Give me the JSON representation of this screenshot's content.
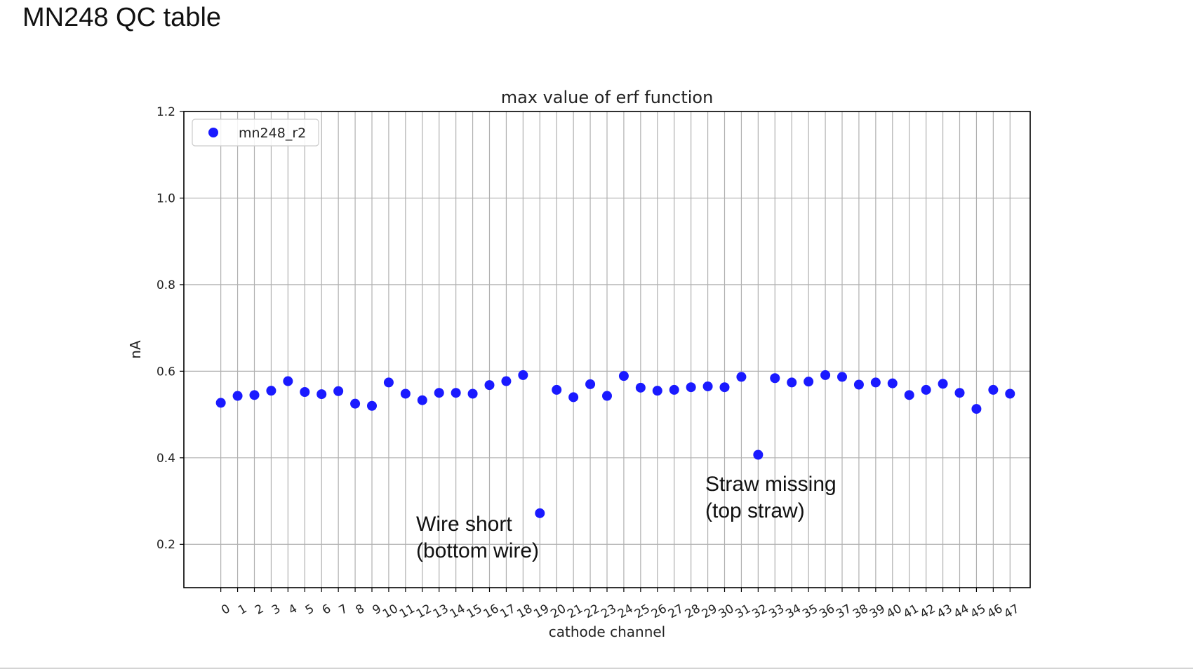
{
  "slide": {
    "title": "MN248 QC table"
  },
  "chart_data": {
    "type": "scatter",
    "title": "max value of erf function",
    "xlabel": "cathode channel",
    "ylabel": "nA",
    "xlim": [
      -2.2,
      48.2
    ],
    "ylim": [
      0.1,
      1.2
    ],
    "x_ticks": [
      0,
      1,
      2,
      3,
      4,
      5,
      6,
      7,
      8,
      9,
      10,
      11,
      12,
      13,
      14,
      15,
      16,
      17,
      18,
      19,
      20,
      21,
      22,
      23,
      24,
      25,
      26,
      27,
      28,
      29,
      30,
      31,
      32,
      33,
      34,
      35,
      36,
      37,
      38,
      39,
      40,
      41,
      42,
      43,
      44,
      45,
      46,
      47
    ],
    "y_ticks": [
      0.2,
      0.4,
      0.6,
      0.8,
      1.0,
      1.2
    ],
    "y_tick_labels": [
      "0.2",
      "0.4",
      "0.6",
      "0.8",
      "1.0",
      "1.2"
    ],
    "grid": true,
    "legend_position": "top-left",
    "series": [
      {
        "name": "mn248_r2",
        "color": "#1a1aff",
        "x": [
          0,
          1,
          2,
          3,
          4,
          5,
          6,
          7,
          8,
          9,
          10,
          11,
          12,
          13,
          14,
          15,
          16,
          17,
          18,
          19,
          20,
          21,
          22,
          23,
          24,
          25,
          26,
          27,
          28,
          29,
          30,
          31,
          32,
          33,
          34,
          35,
          36,
          37,
          38,
          39,
          40,
          41,
          42,
          43,
          44,
          45,
          46,
          47
        ],
        "y": [
          0.527,
          0.543,
          0.545,
          0.555,
          0.577,
          0.552,
          0.547,
          0.554,
          0.525,
          0.52,
          0.574,
          0.548,
          0.533,
          0.55,
          0.55,
          0.548,
          0.568,
          0.577,
          0.591,
          0.272,
          0.557,
          0.54,
          0.57,
          0.543,
          0.589,
          0.562,
          0.555,
          0.557,
          0.563,
          0.565,
          0.563,
          0.587,
          0.407,
          0.584,
          0.574,
          0.576,
          0.591,
          0.587,
          0.569,
          0.574,
          0.572,
          0.545,
          0.557,
          0.571,
          0.55,
          0.513,
          0.557,
          0.548
        ]
      }
    ],
    "annotations": [
      {
        "lines": [
          "Wire short",
          "(bottom wire)"
        ]
      },
      {
        "lines": [
          "Straw missing",
          "(top straw)"
        ]
      }
    ]
  }
}
